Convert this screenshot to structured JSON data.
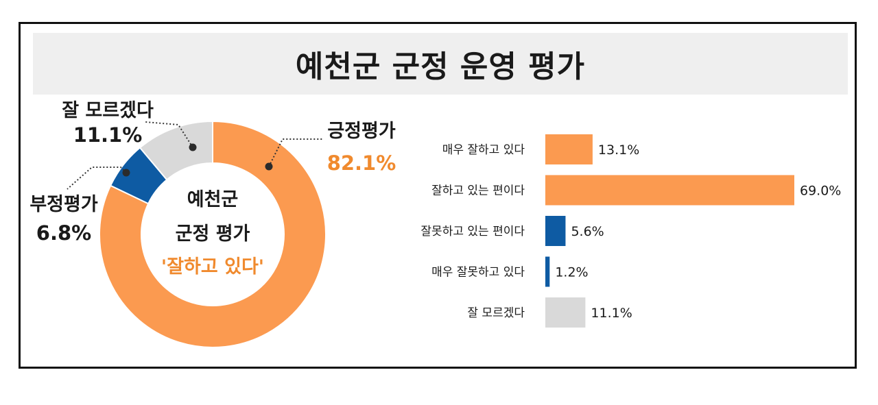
{
  "title": "예천군 군정 운영 평가",
  "colors": {
    "orange": "#FB9A50",
    "blue": "#0E5BA3",
    "gray": "#D9D9D9",
    "orange_text": "#F08A2E"
  },
  "donut": {
    "center_line1": "예천군",
    "center_line2": "군정 평가",
    "center_line3": "'잘하고 있다'",
    "slices": [
      {
        "label": "긍정평가",
        "value": 82.1,
        "value_label": "82.1%",
        "color": "#FB9A50"
      },
      {
        "label": "부정평가",
        "value": 6.8,
        "value_label": "6.8%",
        "color": "#0E5BA3"
      },
      {
        "label": "잘 모르겠다",
        "value": 11.1,
        "value_label": "11.1%",
        "color": "#D9D9D9"
      }
    ]
  },
  "chart_data": [
    {
      "type": "pie",
      "categories": [
        "긍정평가",
        "부정평가",
        "잘 모르겠다"
      ],
      "values": [
        82.1,
        6.8,
        11.1
      ]
    },
    {
      "type": "bar",
      "orientation": "horizontal",
      "categories": [
        "매우 잘하고 있다",
        "잘하고 있는 편이다",
        "잘못하고 있는 편이다",
        "매우 잘못하고 있다",
        "잘 모르겠다"
      ],
      "values": [
        13.1,
        69.0,
        5.6,
        1.2,
        11.1
      ],
      "value_labels": [
        "13.1%",
        "69.0%",
        "5.6%",
        "1.2%",
        "11.1%"
      ],
      "colors": [
        "#FB9A50",
        "#FB9A50",
        "#0E5BA3",
        "#0E5BA3",
        "#D9D9D9"
      ],
      "xlim": [
        0,
        69.0
      ]
    }
  ]
}
